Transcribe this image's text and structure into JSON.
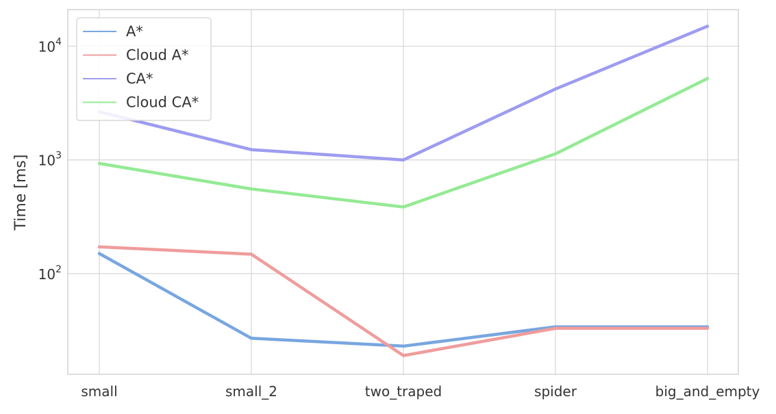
{
  "chart_data": {
    "type": "line",
    "title": "",
    "xlabel": "",
    "ylabel": "Time [ms]",
    "categories": [
      "small",
      "small_2",
      "two_traped",
      "spider",
      "big_and_empty"
    ],
    "y_scale": "log",
    "ylim": [
      13,
      21000
    ],
    "y_ticks": [
      {
        "value": 100,
        "base": "10",
        "exp": "2"
      },
      {
        "value": 1000,
        "base": "10",
        "exp": "3"
      },
      {
        "value": 10000,
        "base": "10",
        "exp": "4"
      }
    ],
    "grid": true,
    "legend": "top-left",
    "series": [
      {
        "name": "A*",
        "color": "#78a6e0",
        "values": [
          150,
          27,
          23,
          34,
          34
        ]
      },
      {
        "name": "Cloud A*",
        "color": "#f09c9c",
        "values": [
          172,
          148,
          19,
          33,
          33
        ]
      },
      {
        "name": "CA*",
        "color": "#9e9cf0",
        "values": [
          2650,
          1230,
          1000,
          4200,
          15000
        ]
      },
      {
        "name": "Cloud CA*",
        "color": "#94ea94",
        "values": [
          930,
          555,
          385,
          1130,
          5200
        ]
      }
    ]
  }
}
